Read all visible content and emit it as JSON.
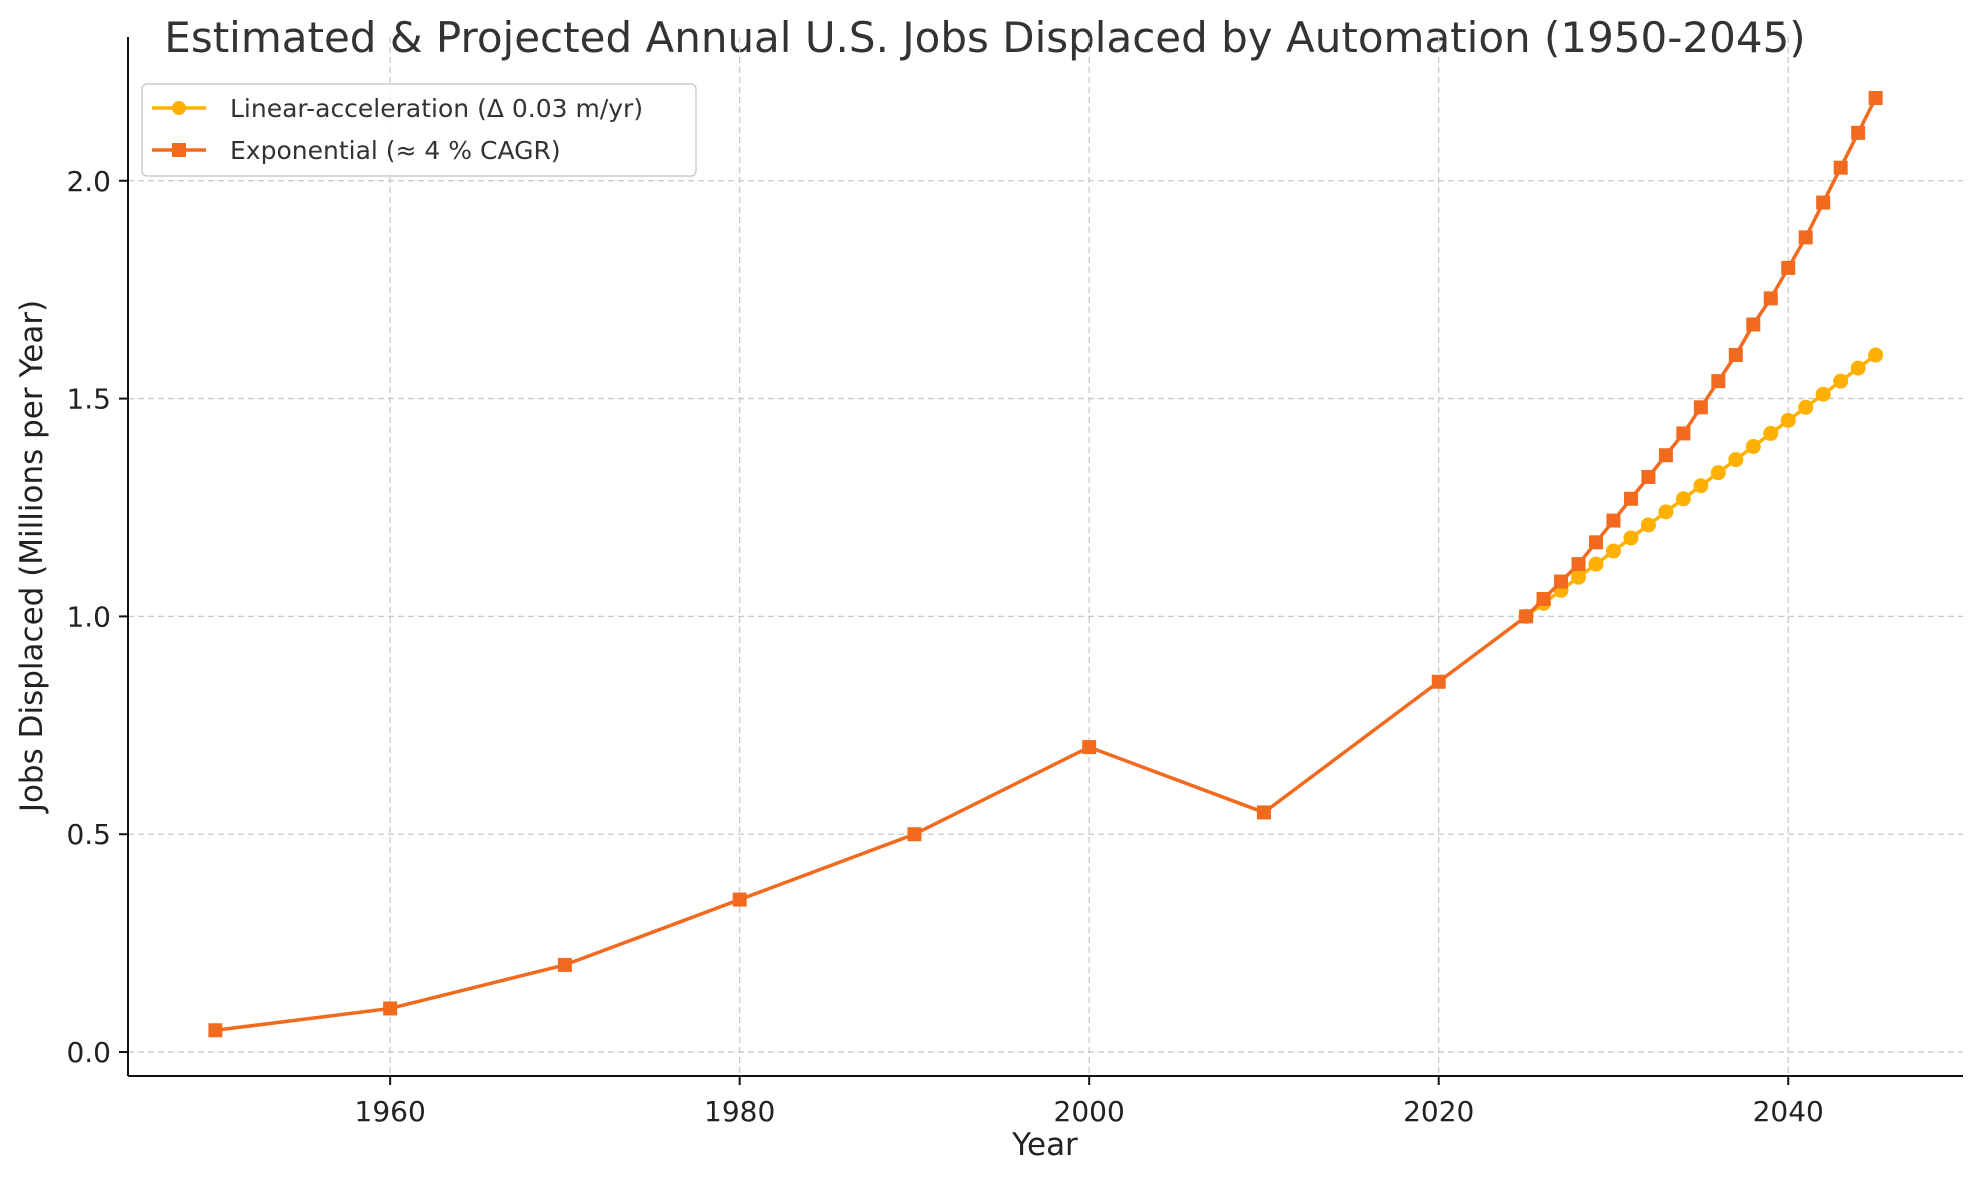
{
  "chart_data": {
    "type": "line",
    "title": "Estimated & Projected Annual U.S. Jobs Displaced by Automation (1950-2045)",
    "xlabel": "Year",
    "ylabel": "Jobs Displaced (Millions per Year)",
    "xlim": [
      1945,
      2050
    ],
    "ylim": [
      -0.055,
      2.33
    ],
    "xticks": [
      1960,
      1980,
      2000,
      2020,
      2040
    ],
    "yticks": [
      0.0,
      0.5,
      1.0,
      1.5,
      2.0
    ],
    "xtick_labels": [
      "1960",
      "1980",
      "2000",
      "2020",
      "2040"
    ],
    "ytick_labels": [
      "0.0",
      "0.5",
      "1.0",
      "1.5",
      "2.0"
    ],
    "grid": true,
    "legend_position": "top-left",
    "series": [
      {
        "name": "Linear-acceleration (Δ 0.03 m/yr)",
        "color": "#FFB000",
        "marker": "circle",
        "x": [
          2025,
          2026,
          2027,
          2028,
          2029,
          2030,
          2031,
          2032,
          2033,
          2034,
          2035,
          2036,
          2037,
          2038,
          2039,
          2040,
          2041,
          2042,
          2043,
          2044,
          2045
        ],
        "y": [
          1.0,
          1.03,
          1.06,
          1.09,
          1.12,
          1.15,
          1.18,
          1.21,
          1.24,
          1.27,
          1.3,
          1.33,
          1.36,
          1.39,
          1.42,
          1.45,
          1.48,
          1.51,
          1.54,
          1.57,
          1.6
        ]
      },
      {
        "name": "Exponential (≈ 4 % CAGR)",
        "color": "#F26A1E",
        "marker": "square",
        "x": [
          1950,
          1960,
          1970,
          1980,
          1990,
          2000,
          2010,
          2020,
          2025,
          2026,
          2027,
          2028,
          2029,
          2030,
          2031,
          2032,
          2033,
          2034,
          2035,
          2036,
          2037,
          2038,
          2039,
          2040,
          2041,
          2042,
          2043,
          2044,
          2045
        ],
        "y": [
          0.05,
          0.1,
          0.2,
          0.35,
          0.5,
          0.7,
          0.55,
          0.85,
          1.0,
          1.04,
          1.08,
          1.12,
          1.17,
          1.22,
          1.27,
          1.32,
          1.37,
          1.42,
          1.48,
          1.54,
          1.6,
          1.67,
          1.73,
          1.8,
          1.87,
          1.95,
          2.03,
          2.11,
          2.19
        ]
      }
    ]
  }
}
